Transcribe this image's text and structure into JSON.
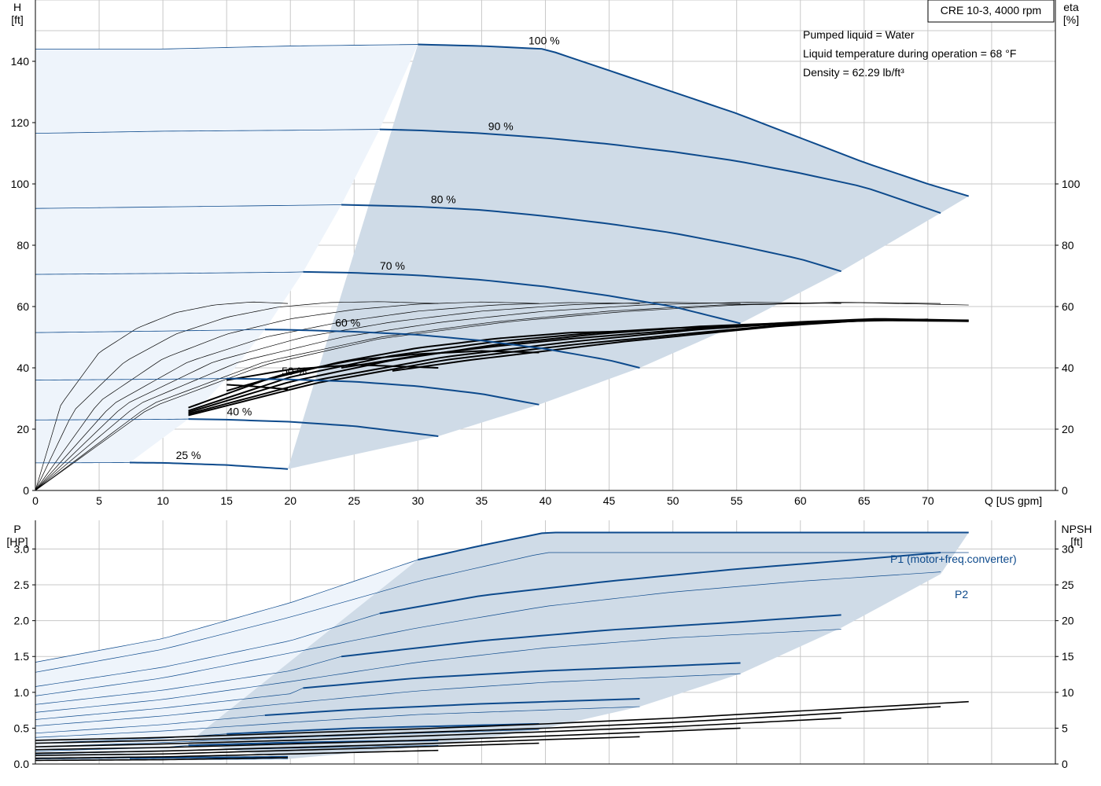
{
  "chart_data": [
    {
      "type": "line",
      "title": "CRE 10-3, 4000 rpm",
      "info": [
        "Pumped liquid = Water",
        "Liquid temperature during operation = 68 °F",
        "Density = 62.29 lb/ft³"
      ],
      "xlabel": "Q [US gpm]",
      "ylabel_left": [
        "H",
        "[ft]"
      ],
      "ylabel_right": [
        "eta",
        "[%]"
      ],
      "xlim": [
        0,
        80
      ],
      "ylim_left": [
        0,
        160
      ],
      "ylim_right": [
        0,
        160
      ],
      "xticks": [
        0,
        5,
        10,
        15,
        20,
        25,
        30,
        35,
        40,
        45,
        50,
        55,
        60,
        65,
        70
      ],
      "yticks_left": [
        0,
        20,
        40,
        60,
        80,
        100,
        120,
        140
      ],
      "yticks_right": [
        0,
        20,
        40,
        60,
        80,
        100
      ],
      "grid": true,
      "colors": {
        "curve": "#0d4a8c",
        "fill_dark": "#cfdbe7",
        "fill_light": "#eef4fb",
        "eta": "#000000"
      },
      "head_series": [
        {
          "speed": 100,
          "label": "100 %",
          "x": [
            0,
            10,
            20,
            30,
            35,
            40,
            45,
            50,
            55,
            60,
            65,
            70,
            73.2
          ],
          "y": [
            144,
            144,
            145,
            145.5,
            145,
            144,
            137,
            130,
            123,
            115,
            107,
            100,
            96
          ]
        },
        {
          "speed": 90,
          "label": "90 %",
          "x": [
            0,
            10,
            20,
            27,
            30,
            35,
            40,
            45,
            50,
            55,
            60,
            65,
            71
          ],
          "y": [
            116.5,
            117.2,
            117.5,
            117.8,
            117.5,
            116.5,
            115,
            113,
            110.5,
            107.5,
            103.5,
            99,
            90.5
          ]
        },
        {
          "speed": 80,
          "label": "80 %",
          "x": [
            0,
            10,
            20,
            24,
            30,
            35,
            40,
            45,
            50,
            55,
            60,
            63.2
          ],
          "y": [
            92,
            92.5,
            93,
            93.2,
            92.6,
            91.5,
            89.5,
            87,
            84,
            80,
            75.5,
            71.5
          ]
        },
        {
          "speed": 70,
          "label": "70 %",
          "x": [
            0,
            10,
            20,
            21,
            25,
            30,
            35,
            40,
            45,
            50,
            55.3
          ],
          "y": [
            70.5,
            70.8,
            71.2,
            71.3,
            71,
            70.2,
            68.7,
            66.5,
            63.5,
            60,
            54.5
          ]
        },
        {
          "speed": 60,
          "label": "60 %",
          "x": [
            0,
            10,
            18,
            20,
            25,
            30,
            35,
            40,
            45,
            47.4
          ],
          "y": [
            51.5,
            52,
            52.5,
            52.4,
            51.8,
            50.8,
            48.9,
            46.2,
            42.5,
            40
          ]
        },
        {
          "speed": 50,
          "label": "50 %",
          "x": [
            0,
            10,
            15,
            20,
            25,
            30,
            35,
            39.5
          ],
          "y": [
            36,
            36.3,
            36.5,
            36.2,
            35.5,
            34,
            31.5,
            28
          ]
        },
        {
          "speed": 40,
          "label": "40 %",
          "x": [
            0,
            10,
            12,
            15,
            20,
            25,
            31.6
          ],
          "y": [
            23,
            23.2,
            23.3,
            23.1,
            22.4,
            21,
            17.7
          ]
        },
        {
          "speed": 25,
          "label": "25 %",
          "x": [
            0,
            7.4,
            10,
            15,
            19.8
          ],
          "y": [
            9,
            9.1,
            9,
            8.3,
            7
          ]
        }
      ],
      "eta_series": [
        {
          "x": [
            0,
            2,
            5,
            8,
            11,
            14,
            17,
            19.8
          ],
          "y": [
            0,
            28,
            45,
            53,
            58,
            60.5,
            61.5,
            61
          ]
        },
        {
          "x": [
            0,
            3,
            7,
            11,
            15,
            19,
            23,
            27,
            31.6
          ],
          "y": [
            0,
            26,
            42,
            51,
            56.5,
            59.8,
            61.3,
            61.6,
            61
          ]
        },
        {
          "x": [
            0,
            5,
            10,
            15,
            20,
            25,
            30,
            35,
            39.5
          ],
          "y": [
            0,
            29,
            43,
            51,
            56,
            59,
            60.8,
            61.5,
            61
          ]
        },
        {
          "x": [
            0,
            6,
            12,
            18,
            24,
            30,
            36,
            42,
            47.4
          ],
          "y": [
            0,
            28,
            42,
            50,
            55,
            58.5,
            60.5,
            61.3,
            61
          ]
        },
        {
          "x": [
            0,
            7,
            14,
            21,
            28,
            35,
            42,
            49,
            55.3
          ],
          "y": [
            0,
            28,
            42,
            50,
            55,
            58.5,
            60.6,
            61.4,
            61
          ]
        },
        {
          "x": [
            0,
            8,
            16,
            24,
            32,
            40,
            48,
            56,
            63.2
          ],
          "y": [
            0,
            28,
            42,
            50,
            55,
            58.5,
            60.6,
            61.4,
            61
          ]
        },
        {
          "x": [
            0,
            9,
            18,
            27,
            36,
            45,
            54,
            63,
            71
          ],
          "y": [
            0,
            28,
            42,
            50,
            55,
            58.5,
            60.6,
            61.4,
            61
          ]
        },
        {
          "x": [
            0,
            9,
            18,
            27,
            37,
            46,
            55,
            64,
            73.2
          ],
          "y": [
            0,
            27,
            41,
            49.5,
            55,
            58.3,
            60.5,
            61.3,
            60.5
          ]
        }
      ],
      "eta_thick_series": [
        {
          "x": [
            15,
            17,
            19.8
          ],
          "y": [
            34.5,
            34,
            33
          ]
        },
        {
          "x": [
            15,
            20,
            25,
            31.6
          ],
          "y": [
            36,
            39.5,
            41,
            40
          ]
        },
        {
          "x": [
            15,
            20,
            25,
            30,
            35,
            39.5
          ],
          "y": [
            32.5,
            38.5,
            42.5,
            44.5,
            45.5,
            45
          ]
        },
        {
          "x": [
            12,
            18,
            24,
            30,
            36,
            42,
            47.4
          ],
          "y": [
            27,
            36,
            42,
            46.5,
            49.5,
            51.5,
            52
          ]
        },
        {
          "x": [
            12,
            20,
            28,
            36,
            44,
            50,
            55.3
          ],
          "y": [
            26,
            37,
            44,
            48.5,
            51.5,
            53,
            53.5
          ]
        },
        {
          "x": [
            12,
            20,
            28,
            36,
            44,
            52,
            58,
            63.2
          ],
          "y": [
            25.5,
            35.5,
            42.5,
            47.5,
            51,
            53.5,
            54.5,
            55
          ]
        },
        {
          "x": [
            12,
            22,
            32,
            42,
            52,
            60,
            66,
            71
          ],
          "y": [
            25,
            36,
            43.5,
            48.5,
            52.5,
            54.8,
            55.6,
            55.5
          ]
        },
        {
          "x": [
            12,
            22,
            32,
            42,
            52,
            60,
            66,
            73.2
          ],
          "y": [
            24.5,
            35,
            42.5,
            47.5,
            51.5,
            54.5,
            55.5,
            55.2
          ]
        },
        {
          "x": [
            24,
            30,
            36,
            42,
            48,
            54,
            60,
            66,
            73.2
          ],
          "y": [
            40,
            44,
            47,
            49.5,
            51.5,
            53.5,
            55,
            56,
            55.5
          ]
        },
        {
          "x": [
            28,
            34,
            40,
            46,
            52,
            58,
            64,
            70
          ],
          "y": [
            39,
            42.5,
            45.5,
            48.5,
            51,
            53.5,
            55.2,
            55.8
          ]
        }
      ]
    },
    {
      "type": "line",
      "ylabel_left": [
        "P",
        "[HP]"
      ],
      "ylabel_right": [
        "NPSH",
        "[ft]"
      ],
      "xlim": [
        0,
        80
      ],
      "ylim_left": [
        0,
        3.4
      ],
      "ylim_right": [
        0,
        34
      ],
      "yticks_left": [
        0.0,
        0.5,
        1.0,
        1.5,
        2.0,
        2.5,
        3.0
      ],
      "yticks_left_labels": [
        "0.0",
        "0.5",
        "1.0",
        "1.5",
        "2.0",
        "2.5",
        "3.0"
      ],
      "yticks_right": [
        0,
        5,
        10,
        15,
        20,
        25,
        30
      ],
      "grid": true,
      "series_labels": [
        "P1 (motor+freq.converter)",
        "P2"
      ],
      "p1_series": [
        {
          "speed": 100,
          "x": [
            0,
            10,
            20,
            30,
            35,
            40,
            50,
            60,
            73.2
          ],
          "y": [
            1.42,
            1.75,
            2.25,
            2.85,
            3.05,
            3.23,
            3.23,
            3.23,
            3.23
          ]
        },
        {
          "speed": 90,
          "x": [
            0,
            10,
            20,
            27,
            35,
            45,
            55,
            65,
            71
          ],
          "y": [
            1.08,
            1.35,
            1.72,
            2.1,
            2.35,
            2.55,
            2.72,
            2.86,
            2.95
          ]
        },
        {
          "speed": 80,
          "x": [
            0,
            10,
            20,
            24,
            35,
            45,
            55,
            63.2
          ],
          "y": [
            0.83,
            1.03,
            1.3,
            1.5,
            1.72,
            1.87,
            1.98,
            2.08
          ]
        },
        {
          "speed": 70,
          "x": [
            0,
            10,
            20,
            21,
            30,
            40,
            50,
            55.3
          ],
          "y": [
            0.62,
            0.78,
            0.98,
            1.06,
            1.2,
            1.3,
            1.37,
            1.41
          ]
        },
        {
          "speed": 60,
          "x": [
            0,
            10,
            18,
            25,
            35,
            47.4
          ],
          "y": [
            0.43,
            0.55,
            0.68,
            0.76,
            0.84,
            0.91
          ]
        },
        {
          "speed": 50,
          "x": [
            0,
            10,
            15,
            25,
            39.5
          ],
          "y": [
            0.29,
            0.36,
            0.42,
            0.5,
            0.56
          ]
        },
        {
          "speed": 40,
          "x": [
            0,
            10,
            12,
            20,
            31.6
          ],
          "y": [
            0.18,
            0.23,
            0.26,
            0.3,
            0.33
          ]
        },
        {
          "speed": 25,
          "x": [
            0,
            7.4,
            12,
            19.8
          ],
          "y": [
            0.07,
            0.08,
            0.09,
            0.1
          ]
        }
      ],
      "p2_series": [
        {
          "speed": 100,
          "x": [
            0,
            10,
            20,
            30,
            40,
            50,
            60,
            73.2
          ],
          "y": [
            1.28,
            1.6,
            2.05,
            2.55,
            2.95,
            2.95,
            2.95,
            2.95
          ]
        },
        {
          "speed": 90,
          "x": [
            0,
            10,
            20,
            30,
            40,
            50,
            60,
            71
          ],
          "y": [
            0.95,
            1.2,
            1.55,
            1.9,
            2.2,
            2.4,
            2.55,
            2.68
          ]
        },
        {
          "speed": 80,
          "x": [
            0,
            10,
            20,
            30,
            40,
            50,
            63.2
          ],
          "y": [
            0.72,
            0.9,
            1.15,
            1.42,
            1.62,
            1.76,
            1.88
          ]
        },
        {
          "speed": 70,
          "x": [
            0,
            10,
            20,
            30,
            40,
            55.3
          ],
          "y": [
            0.53,
            0.67,
            0.85,
            1.02,
            1.14,
            1.26
          ]
        },
        {
          "speed": 60,
          "x": [
            0,
            10,
            20,
            30,
            47.4
          ],
          "y": [
            0.37,
            0.46,
            0.58,
            0.69,
            0.8
          ]
        },
        {
          "speed": 50,
          "x": [
            0,
            10,
            20,
            30,
            39.5
          ],
          "y": [
            0.24,
            0.3,
            0.37,
            0.43,
            0.48
          ]
        },
        {
          "speed": 40,
          "x": [
            0,
            10,
            20,
            31.6
          ],
          "y": [
            0.14,
            0.18,
            0.22,
            0.26
          ]
        },
        {
          "speed": 25,
          "x": [
            0,
            10,
            19.8
          ],
          "y": [
            0.05,
            0.06,
            0.07
          ]
        }
      ],
      "npsh_series": [
        {
          "x": [
            0,
            10,
            19.8
          ],
          "y": [
            0.5,
            0.6,
            0.9
          ]
        },
        {
          "x": [
            0,
            10,
            20,
            31.6
          ],
          "y": [
            0.8,
            1.0,
            1.4,
            1.9
          ]
        },
        {
          "x": [
            0,
            10,
            20,
            30,
            39.5
          ],
          "y": [
            1.2,
            1.4,
            1.9,
            2.4,
            2.9
          ]
        },
        {
          "x": [
            0,
            10,
            20,
            30,
            40,
            47.4
          ],
          "y": [
            1.5,
            1.8,
            2.3,
            2.8,
            3.4,
            3.8
          ]
        },
        {
          "x": [
            0,
            10,
            20,
            30,
            40,
            50,
            55.3
          ],
          "y": [
            2.0,
            2.3,
            2.8,
            3.3,
            3.9,
            4.6,
            5.0
          ]
        },
        {
          "x": [
            0,
            10,
            20,
            30,
            40,
            50,
            63.2
          ],
          "y": [
            2.4,
            2.8,
            3.3,
            3.9,
            4.5,
            5.2,
            6.4
          ]
        },
        {
          "x": [
            0,
            10,
            20,
            30,
            40,
            50,
            60,
            71
          ],
          "y": [
            2.9,
            3.3,
            3.8,
            4.4,
            5.0,
            5.8,
            6.8,
            8.0
          ]
        },
        {
          "x": [
            0,
            10,
            20,
            30,
            40,
            50,
            60,
            73.2
          ],
          "y": [
            3.3,
            3.7,
            4.3,
            4.9,
            5.6,
            6.4,
            7.4,
            8.7
          ]
        }
      ]
    }
  ]
}
